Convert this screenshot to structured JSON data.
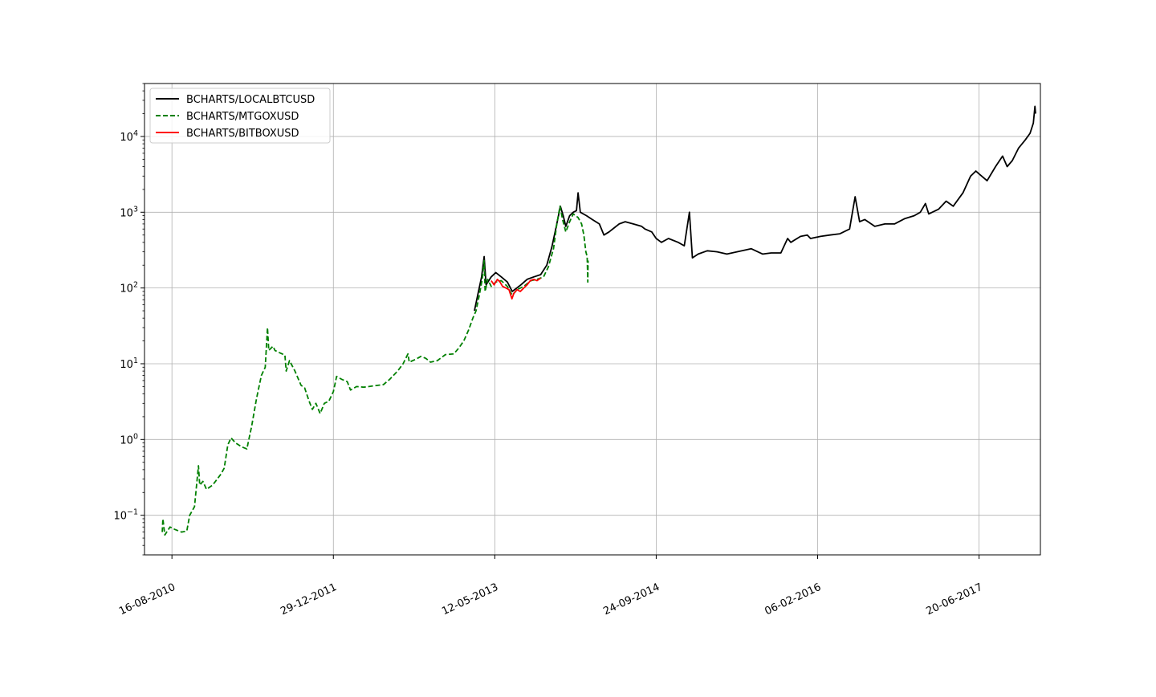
{
  "chart_data": {
    "type": "line",
    "title": "",
    "xlabel": "",
    "ylabel": "",
    "yscale": "log",
    "ylim": [
      0.03,
      50000
    ],
    "xlim": [
      "2010-05-23",
      "2017-12-27"
    ],
    "grid": true,
    "legend_position": "top-left",
    "x_ticks": [
      "16-08-2010",
      "29-12-2011",
      "12-05-2013",
      "24-09-2014",
      "06-02-2016",
      "20-06-2017"
    ],
    "x_tick_dates": [
      "2010-08-16",
      "2011-12-29",
      "2013-05-12",
      "2014-09-24",
      "2016-02-06",
      "2017-06-20"
    ],
    "y_ticks": [
      {
        "value": 0.1,
        "base": "10",
        "exp": "−1"
      },
      {
        "value": 1,
        "base": "10",
        "exp": "0"
      },
      {
        "value": 10,
        "base": "10",
        "exp": "1"
      },
      {
        "value": 100,
        "base": "10",
        "exp": "2"
      },
      {
        "value": 1000,
        "base": "10",
        "exp": "3"
      },
      {
        "value": 10000,
        "base": "10",
        "exp": "4"
      }
    ],
    "series": [
      {
        "name": "BCHARTS/LOCALBTCUSD",
        "color": "#000000",
        "dash": "solid",
        "points": [
          [
            "2013-03-10",
            50
          ],
          [
            "2013-03-20",
            80
          ],
          [
            "2013-04-01",
            140
          ],
          [
            "2013-04-09",
            260
          ],
          [
            "2013-04-15",
            110
          ],
          [
            "2013-05-01",
            140
          ],
          [
            "2013-05-15",
            160
          ],
          [
            "2013-06-01",
            140
          ],
          [
            "2013-06-20",
            120
          ],
          [
            "2013-07-05",
            90
          ],
          [
            "2013-08-01",
            110
          ],
          [
            "2013-08-20",
            130
          ],
          [
            "2013-09-10",
            140
          ],
          [
            "2013-10-01",
            150
          ],
          [
            "2013-10-20",
            200
          ],
          [
            "2013-11-05",
            350
          ],
          [
            "2013-11-20",
            700
          ],
          [
            "2013-12-01",
            1200
          ],
          [
            "2013-12-10",
            900
          ],
          [
            "2013-12-18",
            650
          ],
          [
            "2013-12-30",
            900
          ],
          [
            "2014-01-10",
            1000
          ],
          [
            "2014-01-20",
            1050
          ],
          [
            "2014-01-25",
            1800
          ],
          [
            "2014-02-01",
            1000
          ],
          [
            "2014-02-20",
            900
          ],
          [
            "2014-03-10",
            800
          ],
          [
            "2014-04-01",
            700
          ],
          [
            "2014-04-15",
            500
          ],
          [
            "2014-05-01",
            550
          ],
          [
            "2014-06-01",
            700
          ],
          [
            "2014-06-20",
            750
          ],
          [
            "2014-07-15",
            700
          ],
          [
            "2014-08-10",
            650
          ],
          [
            "2014-08-20",
            600
          ],
          [
            "2014-09-10",
            550
          ],
          [
            "2014-09-24",
            450
          ],
          [
            "2014-10-10",
            400
          ],
          [
            "2014-11-01",
            450
          ],
          [
            "2014-12-01",
            400
          ],
          [
            "2014-12-20",
            360
          ],
          [
            "2015-01-05",
            1000
          ],
          [
            "2015-01-14",
            250
          ],
          [
            "2015-02-01",
            280
          ],
          [
            "2015-03-01",
            310
          ],
          [
            "2015-04-01",
            300
          ],
          [
            "2015-05-01",
            280
          ],
          [
            "2015-06-01",
            300
          ],
          [
            "2015-07-01",
            320
          ],
          [
            "2015-07-15",
            330
          ],
          [
            "2015-08-20",
            280
          ],
          [
            "2015-09-15",
            290
          ],
          [
            "2015-10-15",
            290
          ],
          [
            "2015-11-05",
            450
          ],
          [
            "2015-11-15",
            400
          ],
          [
            "2015-12-15",
            480
          ],
          [
            "2016-01-05",
            500
          ],
          [
            "2016-01-15",
            450
          ],
          [
            "2016-02-15",
            480
          ],
          [
            "2016-03-15",
            500
          ],
          [
            "2016-04-15",
            520
          ],
          [
            "2016-05-15",
            600
          ],
          [
            "2016-06-01",
            1600
          ],
          [
            "2016-06-15",
            750
          ],
          [
            "2016-07-01",
            800
          ],
          [
            "2016-08-01",
            650
          ],
          [
            "2016-09-01",
            700
          ],
          [
            "2016-10-01",
            700
          ],
          [
            "2016-11-01",
            820
          ],
          [
            "2016-12-01",
            900
          ],
          [
            "2016-12-20",
            1000
          ],
          [
            "2017-01-05",
            1300
          ],
          [
            "2017-01-15",
            950
          ],
          [
            "2017-02-15",
            1100
          ],
          [
            "2017-03-10",
            1400
          ],
          [
            "2017-04-01",
            1200
          ],
          [
            "2017-05-01",
            1800
          ],
          [
            "2017-05-25",
            3000
          ],
          [
            "2017-06-10",
            3500
          ],
          [
            "2017-06-20",
            3200
          ],
          [
            "2017-07-15",
            2600
          ],
          [
            "2017-08-10",
            4000
          ],
          [
            "2017-09-01",
            5500
          ],
          [
            "2017-09-15",
            4000
          ],
          [
            "2017-10-01",
            4800
          ],
          [
            "2017-10-20",
            7000
          ],
          [
            "2017-11-10",
            9000
          ],
          [
            "2017-11-25",
            11000
          ],
          [
            "2017-12-05",
            15000
          ],
          [
            "2017-12-10",
            25000
          ],
          [
            "2017-12-12",
            20000
          ]
        ]
      },
      {
        "name": "BCHARTS/MTGOXUSD",
        "color": "#008000",
        "dash": "dashed",
        "points": [
          [
            "2010-07-17",
            0.06
          ],
          [
            "2010-07-19",
            0.09
          ],
          [
            "2010-07-25",
            0.055
          ],
          [
            "2010-08-10",
            0.07
          ],
          [
            "2010-08-25",
            0.065
          ],
          [
            "2010-09-15",
            0.06
          ],
          [
            "2010-10-01",
            0.062
          ],
          [
            "2010-10-10",
            0.1
          ],
          [
            "2010-10-25",
            0.13
          ],
          [
            "2010-11-06",
            0.45
          ],
          [
            "2010-11-10",
            0.25
          ],
          [
            "2010-11-20",
            0.28
          ],
          [
            "2010-12-01",
            0.22
          ],
          [
            "2010-12-20",
            0.25
          ],
          [
            "2011-01-15",
            0.35
          ],
          [
            "2011-01-25",
            0.42
          ],
          [
            "2011-02-05",
            0.85
          ],
          [
            "2011-02-15",
            1.05
          ],
          [
            "2011-03-01",
            0.9
          ],
          [
            "2011-03-20",
            0.8
          ],
          [
            "2011-04-05",
            0.75
          ],
          [
            "2011-04-20",
            1.5
          ],
          [
            "2011-05-05",
            3.5
          ],
          [
            "2011-05-20",
            7
          ],
          [
            "2011-06-01",
            9
          ],
          [
            "2011-06-08",
            30
          ],
          [
            "2011-06-12",
            15
          ],
          [
            "2011-06-25",
            17
          ],
          [
            "2011-07-01",
            15
          ],
          [
            "2011-07-15",
            14
          ],
          [
            "2011-08-01",
            13
          ],
          [
            "2011-08-05",
            8
          ],
          [
            "2011-08-15",
            11
          ],
          [
            "2011-09-01",
            8
          ],
          [
            "2011-09-20",
            5.2
          ],
          [
            "2011-10-01",
            4.8
          ],
          [
            "2011-10-15",
            3.2
          ],
          [
            "2011-10-25",
            2.5
          ],
          [
            "2011-11-05",
            3
          ],
          [
            "2011-11-18",
            2.2
          ],
          [
            "2011-12-01",
            3
          ],
          [
            "2011-12-15",
            3.2
          ],
          [
            "2011-12-29",
            4.3
          ],
          [
            "2012-01-08",
            6.8
          ],
          [
            "2012-01-25",
            6.2
          ],
          [
            "2012-02-10",
            5.8
          ],
          [
            "2012-02-20",
            4.5
          ],
          [
            "2012-03-10",
            5
          ],
          [
            "2012-04-01",
            4.9
          ],
          [
            "2012-05-01",
            5.1
          ],
          [
            "2012-06-01",
            5.3
          ],
          [
            "2012-06-20",
            6.2
          ],
          [
            "2012-07-15",
            8
          ],
          [
            "2012-08-01",
            10
          ],
          [
            "2012-08-16",
            13.5
          ],
          [
            "2012-08-20",
            10.5
          ],
          [
            "2012-09-10",
            11.5
          ],
          [
            "2012-09-25",
            12.5
          ],
          [
            "2012-10-10",
            11.8
          ],
          [
            "2012-10-25",
            10.5
          ],
          [
            "2012-11-15",
            11
          ],
          [
            "2012-12-10",
            13.2
          ],
          [
            "2013-01-05",
            13.5
          ],
          [
            "2013-01-20",
            16
          ],
          [
            "2013-02-05",
            20
          ],
          [
            "2013-02-20",
            28
          ],
          [
            "2013-03-05",
            40
          ],
          [
            "2013-03-15",
            50
          ],
          [
            "2013-03-25",
            80
          ],
          [
            "2013-04-03",
            130
          ],
          [
            "2013-04-09",
            230
          ],
          [
            "2013-04-12",
            90
          ],
          [
            "2013-04-20",
            130
          ],
          [
            "2013-05-01",
            105
          ],
          [
            "2013-05-15",
            120
          ],
          [
            "2013-06-01",
            125
          ],
          [
            "2013-06-20",
            105
          ],
          [
            "2013-07-05",
            80
          ],
          [
            "2013-07-20",
            95
          ],
          [
            "2013-08-10",
            105
          ],
          [
            "2013-09-01",
            125
          ],
          [
            "2013-09-20",
            130
          ],
          [
            "2013-10-10",
            140
          ],
          [
            "2013-10-25",
            190
          ],
          [
            "2013-11-10",
            330
          ],
          [
            "2013-11-20",
            700
          ],
          [
            "2013-11-30",
            1200
          ],
          [
            "2013-12-08",
            800
          ],
          [
            "2013-12-18",
            550
          ],
          [
            "2013-12-30",
            750
          ],
          [
            "2014-01-10",
            950
          ],
          [
            "2014-01-25",
            850
          ],
          [
            "2014-02-05",
            700
          ],
          [
            "2014-02-12",
            500
          ],
          [
            "2014-02-18",
            300
          ],
          [
            "2014-02-22",
            260
          ],
          [
            "2014-02-24",
            120
          ],
          [
            "2014-02-25",
            230
          ]
        ]
      },
      {
        "name": "BCHARTS/BITBOXUSD",
        "color": "#ff0000",
        "dash": "solid",
        "points": [
          [
            "2013-05-01",
            125
          ],
          [
            "2013-05-10",
            110
          ],
          [
            "2013-05-20",
            130
          ],
          [
            "2013-05-28",
            120
          ],
          [
            "2013-06-05",
            105
          ],
          [
            "2013-06-15",
            100
          ],
          [
            "2013-06-25",
            95
          ],
          [
            "2013-07-04",
            72
          ],
          [
            "2013-07-10",
            85
          ],
          [
            "2013-07-20",
            95
          ],
          [
            "2013-07-30",
            90
          ],
          [
            "2013-08-10",
            100
          ],
          [
            "2013-08-20",
            110
          ],
          [
            "2013-08-30",
            125
          ],
          [
            "2013-09-10",
            130
          ],
          [
            "2013-09-20",
            125
          ],
          [
            "2013-10-01",
            135
          ]
        ]
      }
    ]
  }
}
